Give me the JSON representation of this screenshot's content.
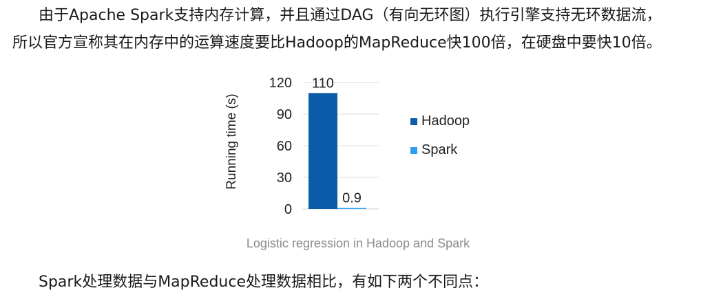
{
  "paragraphs": {
    "line1": "由于Apache Spark支持内存计算，并且通过DAG（有向无环图）执行引擎支持无环数据流，",
    "line2": "所以官方宣称其在内存中的运算速度要比Hadoop的MapReduce快100倍，在硬盘中要快10倍。",
    "line3": "Spark处理数据与MapReduce处理数据相比，有如下两个不同点："
  },
  "chart_data": {
    "type": "bar",
    "title": "",
    "caption": "Logistic regression in Hadoop and Spark",
    "xlabel": "",
    "ylabel": "Running time (s)",
    "ylim": [
      0,
      120
    ],
    "yticks": [
      0,
      30,
      60,
      90,
      120
    ],
    "grid": true,
    "legend_position": "right",
    "series": [
      {
        "name": "Hadoop",
        "values": [
          110
        ],
        "label": "110",
        "color": "#0b5ba9"
      },
      {
        "name": "Spark",
        "values": [
          0.9
        ],
        "label": "0.9",
        "color": "#2e9ff0"
      }
    ]
  }
}
